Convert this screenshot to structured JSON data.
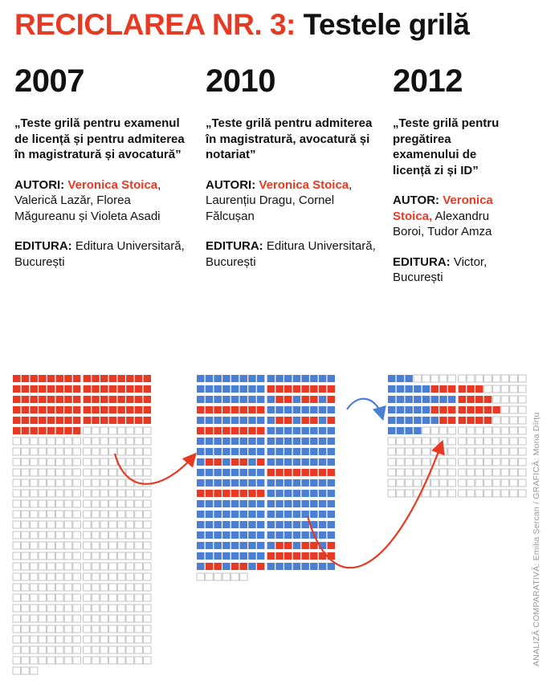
{
  "header": {
    "title_red": "RECICLAREA NR. 3:",
    "title_black": "Testele grilă"
  },
  "columns": [
    {
      "year": "2007",
      "book": "„Teste grilă pentru examenul de licență și pentru admiterea în magistratură și avocatură”",
      "authors_label": "AUTORI:",
      "authors_highlight": "Veronica Stoica",
      "authors_rest": ", Valerică Lazăr, Florea Măgureanu și Violeta Asadi",
      "publisher_label": "EDITURA:",
      "publisher": "Editura Universitară, București"
    },
    {
      "year": "2010",
      "book": "„Teste grilă pentru admiterea în magistratură, avocatură și notariat”",
      "authors_label": "AUTORI:",
      "authors_highlight": "Veronica Stoica",
      "authors_rest": ", Laurențiu Dragu, Cornel Fălcușan",
      "publisher_label": "EDITURA:",
      "publisher": "Editura Universitară, București"
    },
    {
      "year": "2012",
      "book": "„Teste grilă pentru pregătirea examenului de licență zi și ID”",
      "authors_label": "AUTOR:",
      "authors_highlight": "Veronica Stoica,",
      "authors_rest": " Alexandru Boroi, Tudor Amza",
      "publisher_label": "EDITURA:",
      "publisher": "Victor, București"
    }
  ],
  "credit": "ANALIZĂ COMPARATIVĂ: Emilia Șercan / GRAFICĂ: Mona Dîrțu",
  "colors": {
    "accent_red": "#e63a25",
    "blue": "#4a7fd4",
    "empty_block": "#bdbdbd",
    "text": "#111111"
  },
  "waffles": [
    {
      "year": "2007",
      "columns": 2,
      "per_row": 8,
      "rows": [
        [
          8,
          8
        ],
        [
          8,
          8
        ],
        [
          8,
          8
        ],
        [
          8,
          8
        ],
        [
          8,
          8
        ],
        [
          8,
          8
        ],
        [
          8,
          8
        ],
        [
          8,
          8
        ],
        [
          8,
          8
        ],
        [
          8,
          8
        ],
        [
          8,
          8
        ],
        [
          8,
          8
        ],
        [
          8,
          8
        ],
        [
          8,
          8
        ],
        [
          8,
          8
        ],
        [
          8,
          8
        ],
        [
          8,
          8
        ],
        [
          8,
          8
        ],
        [
          8,
          8
        ],
        [
          8,
          8
        ],
        [
          8,
          8
        ],
        [
          8,
          8
        ],
        [
          8,
          8
        ],
        [
          8,
          8
        ],
        [
          8,
          8
        ],
        [
          8,
          8
        ],
        [
          8,
          8
        ],
        [
          8,
          8
        ],
        [
          8,
          8
        ],
        [
          3,
          0
        ]
      ],
      "red_rows": 7
    },
    {
      "year": "2010",
      "columns": 2,
      "per_row": 8,
      "rows_count": 20,
      "last_row_count": 5
    },
    {
      "year": "2012",
      "columns": 2,
      "per_row": 8,
      "rows_count": 12
    }
  ]
}
